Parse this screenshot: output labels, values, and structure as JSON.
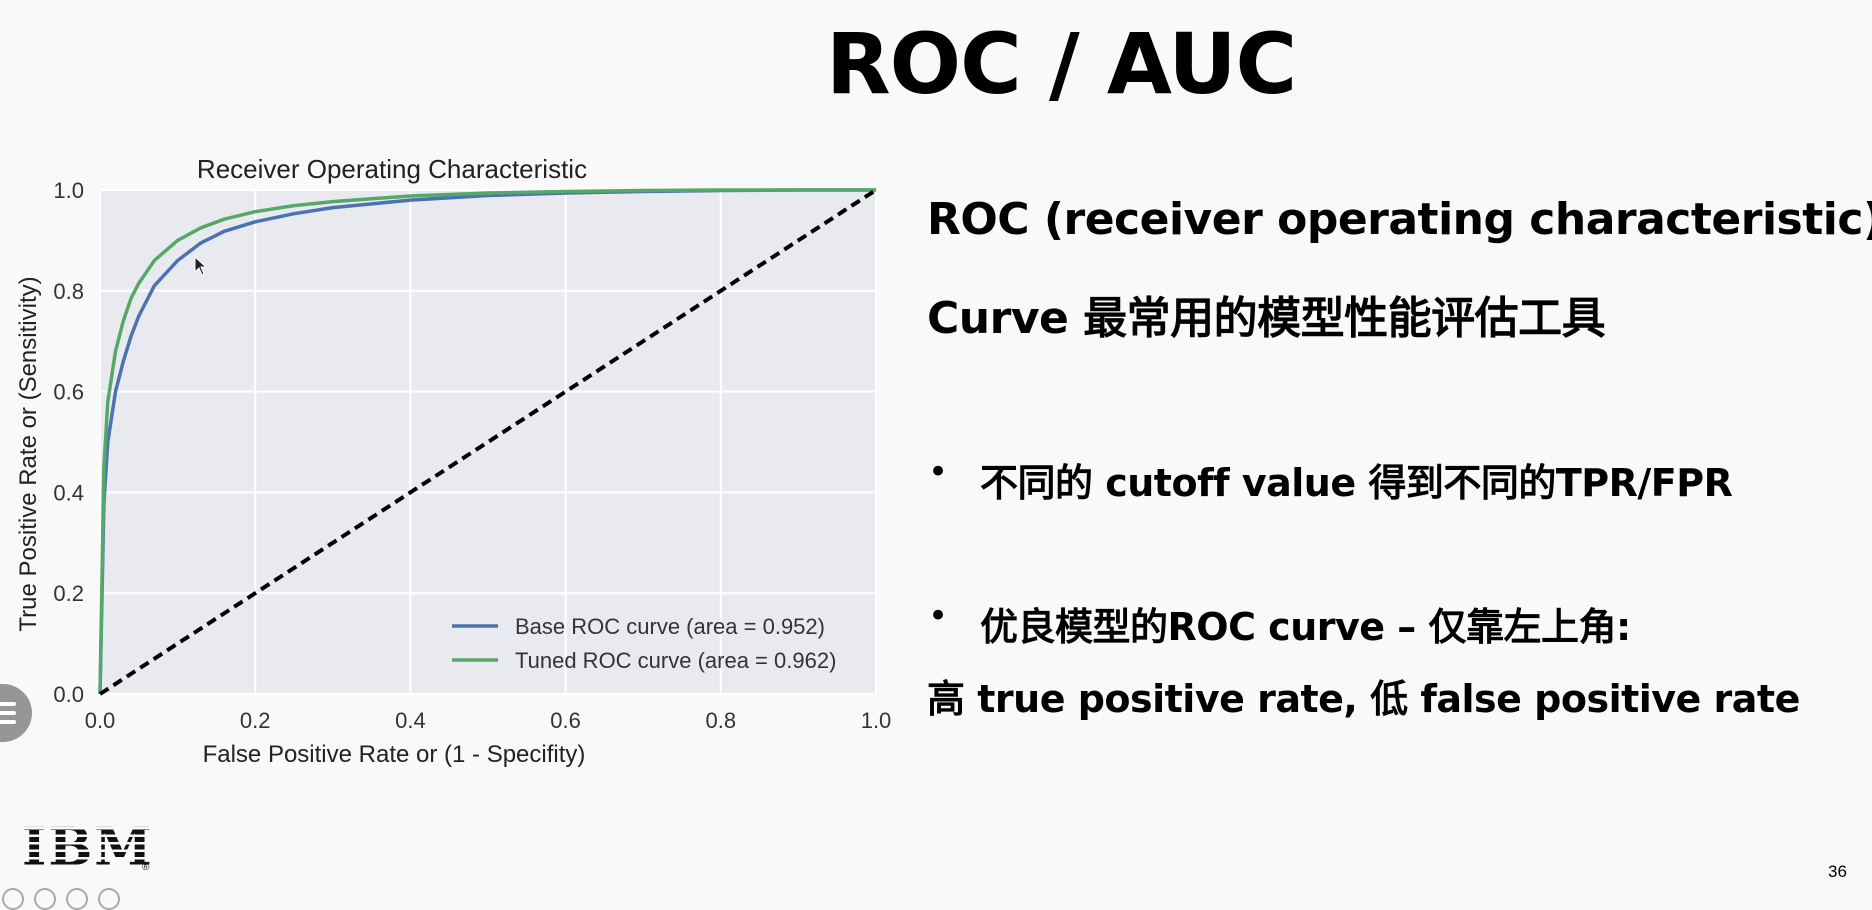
{
  "slide": {
    "title": "ROC / AUC",
    "heading_line1": "ROC (receiver operating characteristic)",
    "heading_line2": "Curve 最常用的模型性能评估工具",
    "bullet1": "不同的 cutoff value 得到不同的TPR/FPR",
    "bullet2": "优良模型的ROC curve – 仅靠左上角:",
    "bullet2_continued": "高 true positive rate, 低 false positive rate",
    "bullet_symbol": "•",
    "logo_text": "IBM",
    "page_number": "36"
  },
  "chart_data": {
    "type": "line",
    "title": "Receiver Operating Characteristic",
    "xlabel": "False Positive Rate or (1 - Specifity)",
    "ylabel": "True Positive Rate or (Sensitivity)",
    "xlim": [
      0.0,
      1.0
    ],
    "ylim": [
      0.0,
      1.0
    ],
    "xticks": [
      "0.0",
      "0.2",
      "0.4",
      "0.6",
      "0.8",
      "1.0"
    ],
    "yticks": [
      "0.0",
      "0.2",
      "0.4",
      "0.6",
      "0.8",
      "1.0"
    ],
    "grid": true,
    "legend_position": "bottom-right",
    "series": [
      {
        "name": "Base ROC curve (area = 0.952)",
        "color": "#4c72b0",
        "x": [
          0.0,
          0.005,
          0.01,
          0.02,
          0.03,
          0.04,
          0.05,
          0.07,
          0.1,
          0.13,
          0.16,
          0.2,
          0.25,
          0.3,
          0.4,
          0.5,
          0.6,
          0.7,
          0.8,
          0.9,
          1.0
        ],
        "y": [
          0.0,
          0.38,
          0.5,
          0.6,
          0.66,
          0.71,
          0.75,
          0.81,
          0.86,
          0.895,
          0.918,
          0.937,
          0.953,
          0.965,
          0.98,
          0.989,
          0.994,
          0.997,
          0.999,
          1.0,
          1.0
        ]
      },
      {
        "name": "Tuned ROC curve (area = 0.962)",
        "color": "#55a868",
        "x": [
          0.0,
          0.005,
          0.01,
          0.02,
          0.03,
          0.04,
          0.05,
          0.07,
          0.1,
          0.13,
          0.16,
          0.2,
          0.25,
          0.3,
          0.4,
          0.5,
          0.6,
          0.7,
          0.8,
          0.9,
          1.0
        ],
        "y": [
          0.0,
          0.45,
          0.58,
          0.68,
          0.74,
          0.785,
          0.815,
          0.86,
          0.9,
          0.925,
          0.942,
          0.957,
          0.969,
          0.977,
          0.988,
          0.994,
          0.997,
          0.999,
          1.0,
          1.0,
          1.0
        ]
      },
      {
        "name": "",
        "color": "#000000",
        "dashed": true,
        "x": [
          0.0,
          1.0
        ],
        "y": [
          0.0,
          1.0
        ]
      }
    ]
  }
}
